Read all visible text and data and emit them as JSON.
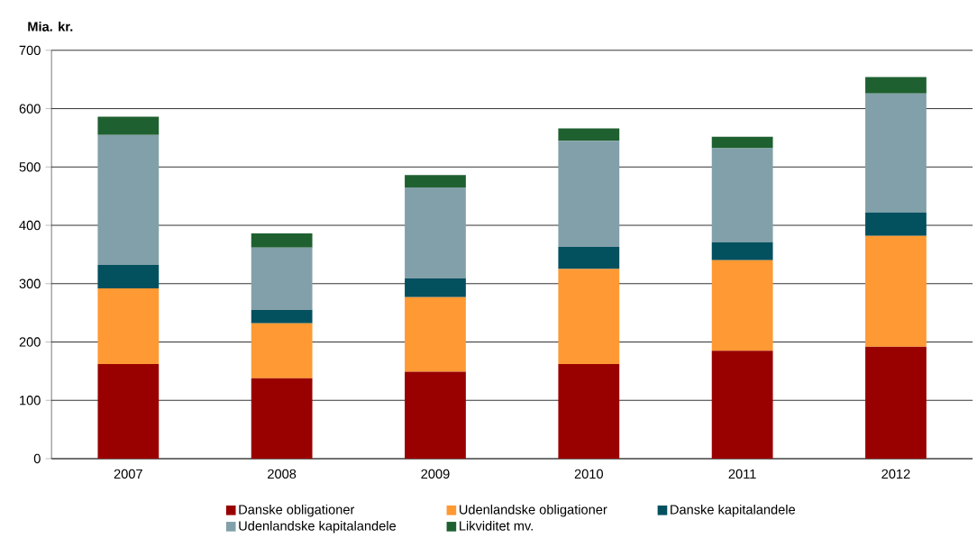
{
  "chart_data": {
    "type": "bar",
    "stacked": true,
    "ylabel": "Mia. kr.",
    "categories": [
      "2007",
      "2008",
      "2009",
      "2010",
      "2011",
      "2012"
    ],
    "series": [
      {
        "name": "Danske obligationer",
        "color": "#990000",
        "values": [
          162,
          138,
          149,
          162,
          185,
          192
        ]
      },
      {
        "name": "Udenlandske obligationer",
        "color": "#ff9933",
        "values": [
          130,
          94,
          128,
          163,
          155,
          190
        ]
      },
      {
        "name": "Danske kapitalandele",
        "color": "#03505f",
        "values": [
          40,
          23,
          32,
          38,
          31,
          40
        ]
      },
      {
        "name": "Udenlandske kapitalandele",
        "color": "#82a0aa",
        "values": [
          223,
          107,
          156,
          182,
          161,
          204
        ]
      },
      {
        "name": "Likviditet mv.",
        "color": "#1f6030",
        "values": [
          31,
          24,
          21,
          21,
          20,
          28
        ]
      }
    ],
    "ylim": [
      0,
      700
    ],
    "yticks": [
      0,
      100,
      200,
      300,
      400,
      500,
      600,
      700
    ],
    "grid": "y",
    "legend": "bottom"
  }
}
